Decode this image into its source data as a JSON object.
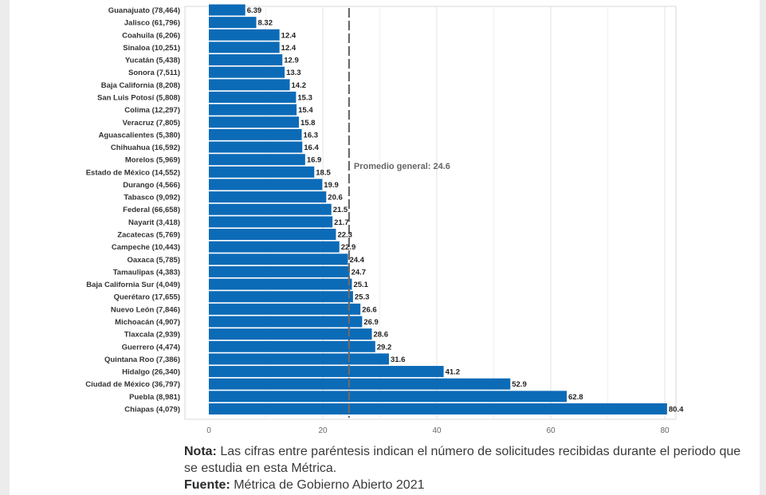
{
  "chart_data": {
    "type": "bar",
    "orientation": "horizontal",
    "categories": [
      "Guanajuato (78,464)",
      "Jalisco (61,796)",
      "Coahuila (6,206)",
      "Sinaloa (10,251)",
      "Yucatán (5,438)",
      "Sonora (7,511)",
      "Baja California (8,208)",
      "San Luis Potosí (5,808)",
      "Colima (12,297)",
      "Veracruz (7,805)",
      "Aguascalientes (5,380)",
      "Chihuahua (16,592)",
      "Morelos (5,969)",
      "Estado de México (14,552)",
      "Durango (4,566)",
      "Tabasco (9,092)",
      "Federal (66,658)",
      "Nayarit (3,418)",
      "Zacatecas (5,769)",
      "Campeche (10,443)",
      "Oaxaca (5,785)",
      "Tamaulipas (4,383)",
      "Baja California Sur (4,049)",
      "Querétaro (17,655)",
      "Nuevo León (7,846)",
      "Michoacán (4,907)",
      "Tlaxcala (2,939)",
      "Guerrero (4,474)",
      "Quintana Roo (7,386)",
      "Hidalgo (26,340)",
      "Ciudad de México (36,797)",
      "Puebla (8,981)",
      "Chiapas (4,079)"
    ],
    "value_labels": [
      "6.39",
      "8.32",
      "12.4",
      "12.4",
      "12.9",
      "13.3",
      "14.2",
      "15.3",
      "15.4",
      "15.8",
      "16.3",
      "16.4",
      "16.9",
      "18.5",
      "19.9",
      "20.6",
      "21.5",
      "21.7",
      "22.3",
      "22.9",
      "24.4",
      "24.7",
      "25.1",
      "25.3",
      "26.6",
      "26.9",
      "28.6",
      "29.2",
      "31.6",
      "41.2",
      "52.9",
      "62.8",
      "80.4"
    ],
    "values": [
      6.39,
      8.32,
      12.4,
      12.4,
      12.9,
      13.3,
      14.2,
      15.3,
      15.4,
      15.8,
      16.3,
      16.4,
      16.9,
      18.5,
      19.9,
      20.6,
      21.5,
      21.7,
      22.3,
      22.9,
      24.4,
      24.7,
      25.1,
      25.3,
      26.6,
      26.9,
      28.6,
      29.2,
      31.6,
      41.2,
      52.9,
      62.8,
      80.4
    ],
    "xlim": [
      0,
      80.4
    ],
    "xticks": [
      "0",
      "20",
      "40",
      "60",
      "80"
    ],
    "xtick_values": [
      0,
      20,
      40,
      60,
      80
    ],
    "grid": true,
    "bar_color": "#0c6bb7",
    "average": {
      "value": 24.6,
      "label": "Promedio general: 24.6",
      "line_color": "#6b6b6b"
    }
  },
  "note": {
    "note_label": "Nota:",
    "note_text": " Las cifras entre paréntesis indican el número de solicitudes recibidas durante el periodo que se estudia en esta Métrica.",
    "source_label": "Fuente:",
    "source_text": " Métrica de Gobierno Abierto 2021"
  }
}
